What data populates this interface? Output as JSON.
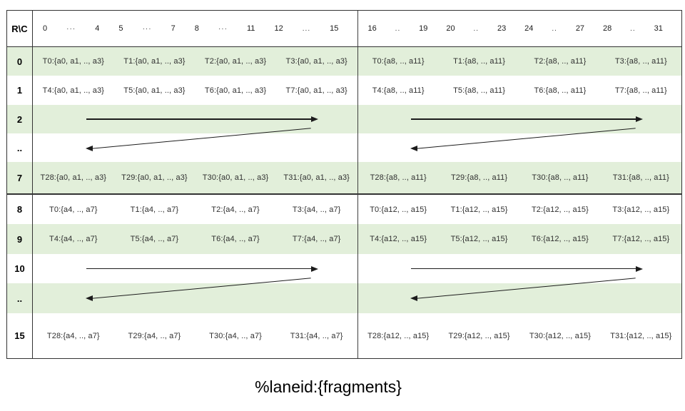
{
  "table": {
    "corner": "R\\C",
    "col_headers_left": [
      "0",
      "···",
      "4",
      "5",
      "···",
      "7",
      "8",
      "···",
      "11",
      "12",
      "...",
      "15"
    ],
    "col_headers_right": [
      "16",
      "..",
      "19",
      "20",
      "..",
      "23",
      "24",
      "..",
      "27",
      "28",
      "..",
      "31"
    ],
    "rows": [
      {
        "label": "0",
        "cells": [
          "T0:{a0, a1, .., a3}",
          "T1:{a0, a1, .., a3}",
          "T2:{a0, a1, .., a3}",
          "T3:{a0, a1, .., a3}",
          "T0:{a8, .., a11}",
          "T1:{a8, .., a11}",
          "T2:{a8, .., a11}",
          "T3:{a8, .., a11}"
        ]
      },
      {
        "label": "1",
        "cells": [
          "T4:{a0, a1, .., a3}",
          "T5:{a0, a1, .., a3}",
          "T6:{a0, a1, .., a3}",
          "T7:{a0, a1, .., a3}",
          "T4:{a8, .., a11}",
          "T5:{a8, .., a11}",
          "T6:{a8, .., a11}",
          "T7:{a8, .., a11}"
        ]
      },
      {
        "label": "2",
        "arrow": "forward"
      },
      {
        "label": "..",
        "arrow": "return"
      },
      {
        "label": "7",
        "cells": [
          "T28:{a0, a1, .., a3}",
          "T29:{a0, a1, .., a3}",
          "T30:{a0, a1, .., a3}",
          "T31:{a0, a1, .., a3}",
          "T28:{a8, .., a11}",
          "T29:{a8, .., a11}",
          "T30:{a8, .., a11}",
          "T31:{a8, .., a11}"
        ]
      },
      {
        "label": "8",
        "cells": [
          "T0:{a4, .., a7}",
          "T1:{a4, .., a7}",
          "T2:{a4, .., a7}",
          "T3:{a4, .., a7}",
          "T0:{a12, .., a15}",
          "T1:{a12, .., a15}",
          "T2:{a12, .., a15}",
          "T3:{a12, .., a15}"
        ]
      },
      {
        "label": "9",
        "cells": [
          "T4:{a4, .., a7}",
          "T5:{a4, .., a7}",
          "T6:{a4, .., a7}",
          "T7:{a4, .., a7}",
          "T4:{a12, .., a15}",
          "T5:{a12, .., a15}",
          "T6:{a12, .., a15}",
          "T7:{a12, .., a15}"
        ]
      },
      {
        "label": "10",
        "arrow": "forward"
      },
      {
        "label": "..",
        "arrow": "return"
      },
      {
        "label": "15",
        "cells": [
          "T28:{a4, .., a7}",
          "T29:{a4, .., a7}",
          "T30:{a4, .., a7}",
          "T31:{a4, .., a7}",
          "T28:{a12, .., a15}",
          "T29:{a12, .., a15}",
          "T30:{a12, .., a15}",
          "T31:{a12, .., a15}"
        ]
      }
    ]
  },
  "caption": "%laneid:{fragments}",
  "colors": {
    "band_green": "#e2efda",
    "border_dark": "#333333",
    "text": "#303030",
    "background": "#ffffff"
  }
}
